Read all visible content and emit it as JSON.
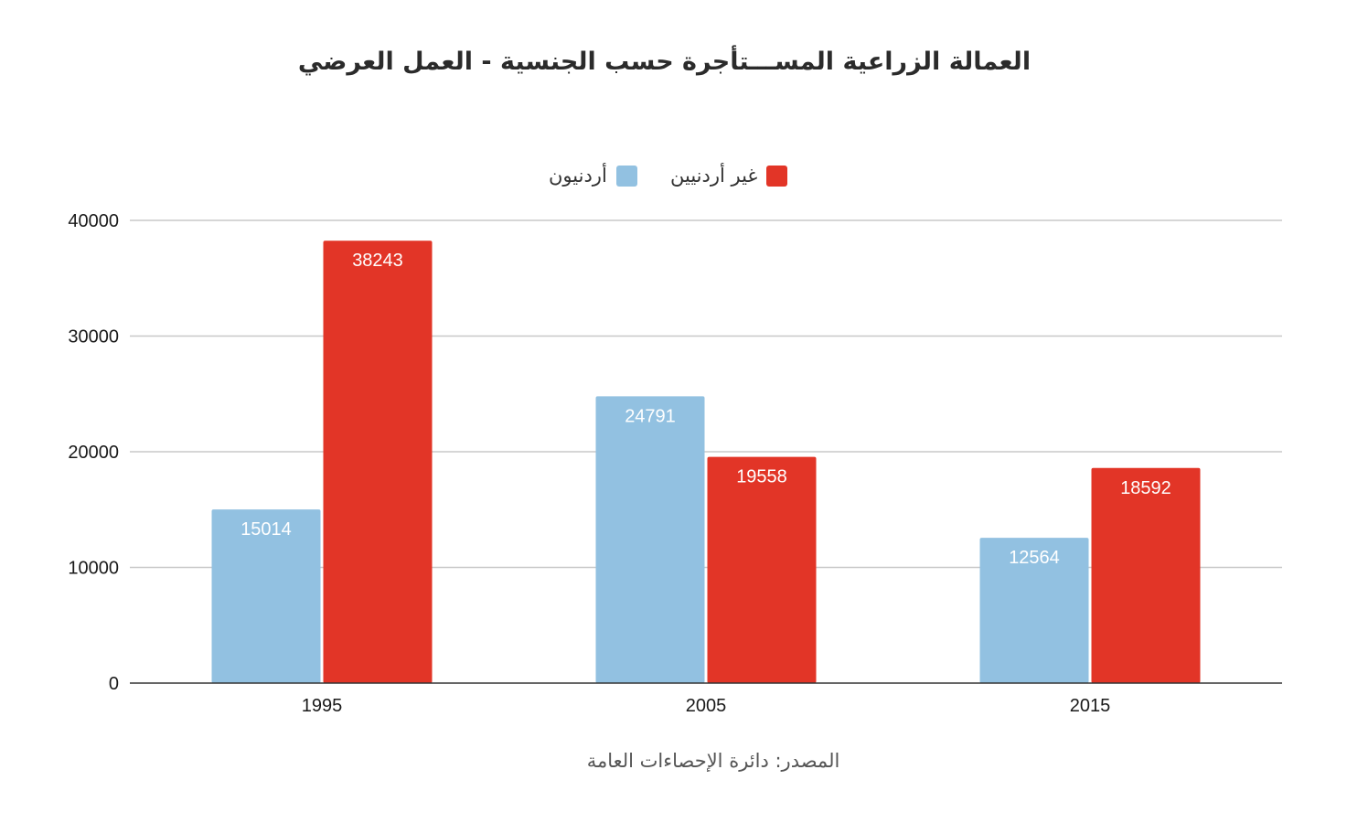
{
  "chart_data": {
    "type": "bar",
    "title": "العمالة الزراعية المســـتأجرة حسب الجنسية - العمل العرضي",
    "categories": [
      "1995",
      "2005",
      "2015"
    ],
    "series": [
      {
        "name": "أردنيون",
        "color": "#92c1e1",
        "values": [
          15014,
          24791,
          12564
        ]
      },
      {
        "name": "غير أردنيين",
        "color": "#e23527",
        "values": [
          38243,
          19558,
          18592
        ]
      }
    ],
    "ylim": [
      0,
      40000
    ],
    "yticks": [
      "0",
      "10000",
      "20000",
      "30000",
      "40000"
    ],
    "grid": true,
    "legend_position": "top",
    "data_labels": true,
    "source": "المصدر: دائرة الإحصاءات العامة"
  }
}
